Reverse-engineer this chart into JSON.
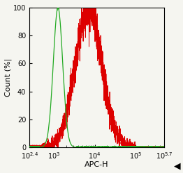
{
  "title": "",
  "xlabel": "APC-H",
  "ylabel": "Count (%|",
  "xlim_log": [
    2.4,
    5.7
  ],
  "ylim": [
    0,
    100
  ],
  "yticks": [
    0,
    20,
    40,
    60,
    80,
    100
  ],
  "green_color": "#22aa22",
  "red_color": "#dd0000",
  "green_peak_log": 3.1,
  "green_sigma_log": 0.115,
  "red_peak_log": 3.85,
  "red_sigma_log": 0.32,
  "background_color": "#f5f5f0",
  "plot_bg_color": "#f5f5f0"
}
